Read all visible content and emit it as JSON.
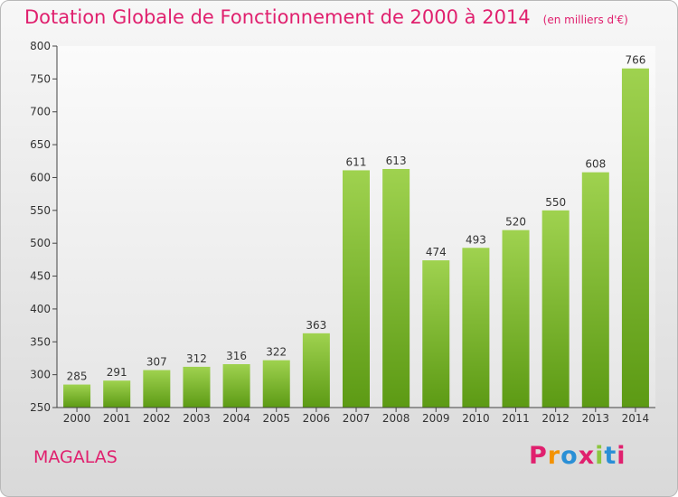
{
  "header": {
    "title": "Dotation Globale de Fonctionnement de 2000 à 2014",
    "subtitle": "(en milliers d'€)"
  },
  "footer": {
    "place": "MAGALAS",
    "logo": "Proxiti",
    "logo_colors": [
      "#e0206e",
      "#f39200",
      "#2a8fd6",
      "#e0206e",
      "#8cc63f",
      "#2a8fd6",
      "#e0206e"
    ]
  },
  "chart_data": {
    "type": "bar",
    "categories": [
      "2000",
      "2001",
      "2002",
      "2003",
      "2004",
      "2005",
      "2006",
      "2007",
      "2008",
      "2009",
      "2010",
      "2011",
      "2012",
      "2013",
      "2014"
    ],
    "values": [
      285,
      291,
      307,
      312,
      316,
      322,
      363,
      611,
      613,
      474,
      493,
      520,
      550,
      608,
      766
    ],
    "title": "Dotation Globale de Fonctionnement de 2000 à 2014",
    "subtitle": "(en milliers d'€)",
    "xlabel": "",
    "ylabel": "",
    "ylim": [
      250,
      800
    ],
    "yticks": [
      250,
      300,
      350,
      400,
      450,
      500,
      550,
      600,
      650,
      700,
      750,
      800
    ],
    "grid": false,
    "legend": "none",
    "bar_color": "#7ab82c"
  }
}
